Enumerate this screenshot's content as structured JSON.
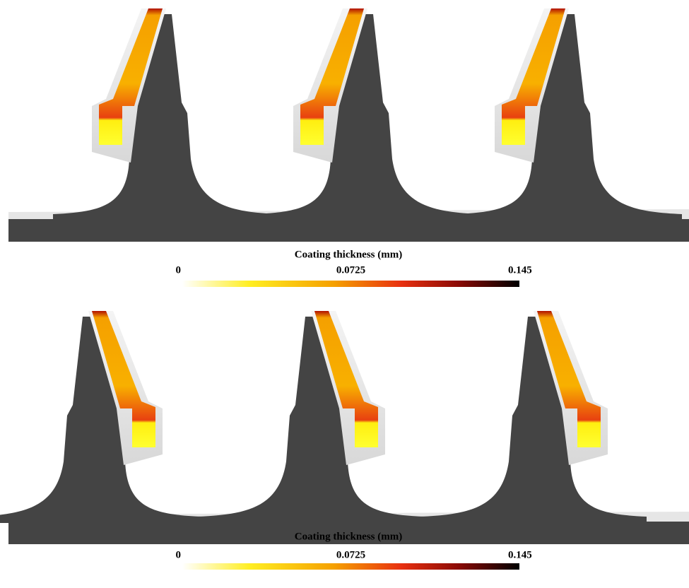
{
  "panels": [
    {
      "colorbar": {
        "title": "Coating thickness (mm)",
        "lim": [
          0,
          0.145
        ],
        "ticks": [
          0,
          0.0725,
          0.145
        ]
      }
    },
    {
      "colorbar": {
        "title": "Coating thickness (mm)",
        "lim": [
          0,
          0.145
        ],
        "ticks": [
          0,
          0.0725,
          0.145
        ]
      }
    }
  ]
}
